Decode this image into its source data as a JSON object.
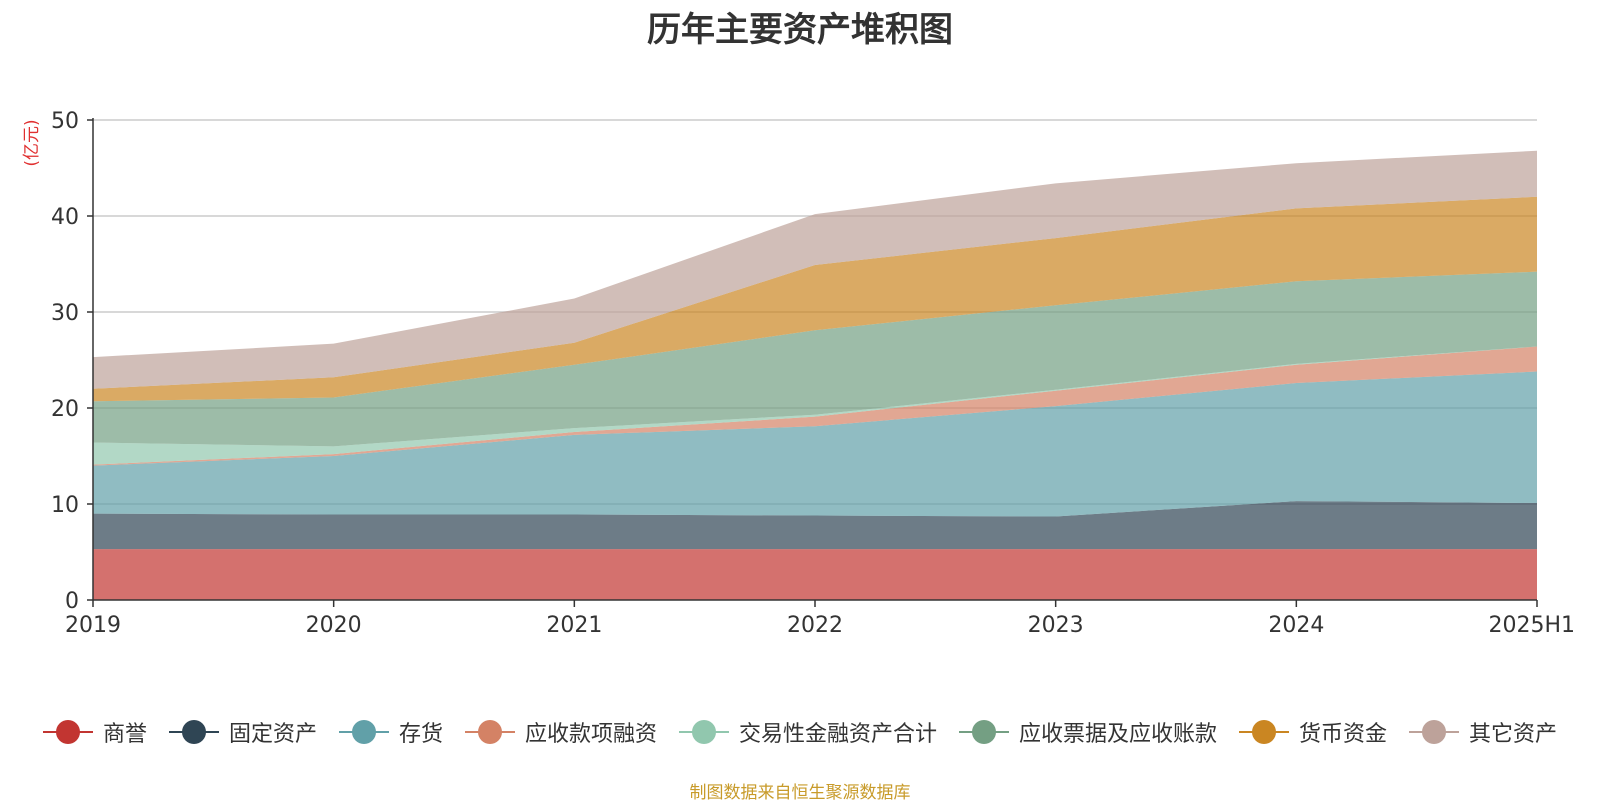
{
  "chart_data": {
    "type": "area",
    "stacked": true,
    "title": "历年主要资产堆积图",
    "ylabel": "(亿元)",
    "xlabel": "",
    "x": [
      "2019",
      "2020",
      "2021",
      "2022",
      "2023",
      "2024",
      "2025H1"
    ],
    "ylim": [
      0,
      50
    ],
    "yticks": [
      0,
      10,
      20,
      30,
      40,
      50
    ],
    "grid": true,
    "legend_position": "bottom",
    "series": [
      {
        "name": "商誉",
        "color": "#c23531",
        "values": [
          5.3,
          5.3,
          5.3,
          5.3,
          5.3,
          5.3,
          5.3
        ]
      },
      {
        "name": "固定资产",
        "color": "#2f4554",
        "values": [
          3.7,
          3.6,
          3.6,
          3.5,
          3.4,
          5.0,
          4.8
        ]
      },
      {
        "name": "存货",
        "color": "#61a0a8",
        "values": [
          5.0,
          6.1,
          8.3,
          9.3,
          11.5,
          12.3,
          13.7
        ]
      },
      {
        "name": "应收款项融资",
        "color": "#d48265",
        "values": [
          0.1,
          0.2,
          0.3,
          1.0,
          1.6,
          1.9,
          2.6
        ]
      },
      {
        "name": "交易性金融资产合计",
        "color": "#91c7ae",
        "values": [
          2.3,
          0.8,
          0.4,
          0.2,
          0.1,
          0.1,
          0.0
        ]
      },
      {
        "name": "应收票据及应收账款",
        "color": "#749f83",
        "values": [
          4.3,
          5.1,
          6.6,
          8.8,
          8.8,
          8.6,
          7.8
        ]
      },
      {
        "name": "货币资金",
        "color": "#ca8622",
        "values": [
          1.3,
          2.1,
          2.3,
          6.8,
          7.0,
          7.6,
          7.8
        ]
      },
      {
        "name": "其它资产",
        "color": "#bda29a",
        "values": [
          3.3,
          3.5,
          4.6,
          5.3,
          5.7,
          4.7,
          4.8
        ]
      }
    ]
  },
  "source_note": "制图数据来自恒生聚源数据库"
}
